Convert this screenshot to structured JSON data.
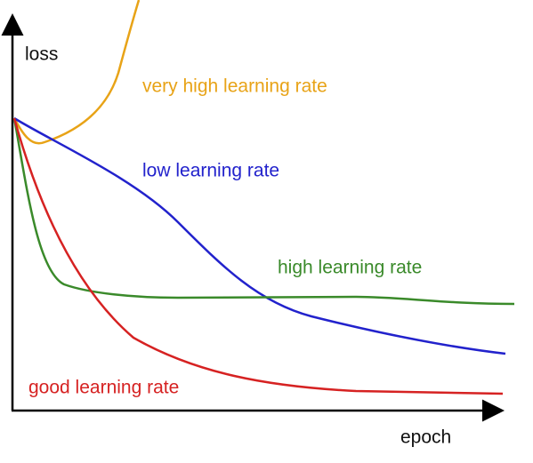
{
  "axes": {
    "y_label": "loss",
    "x_label": "epoch"
  },
  "curves": [
    {
      "label": "very high learning rate",
      "color": "#e8a317"
    },
    {
      "label": "low learning rate",
      "color": "#2222cc"
    },
    {
      "label": "high learning rate",
      "color": "#3a8a2a"
    },
    {
      "label": "good learning rate",
      "color": "#d62222"
    }
  ]
}
